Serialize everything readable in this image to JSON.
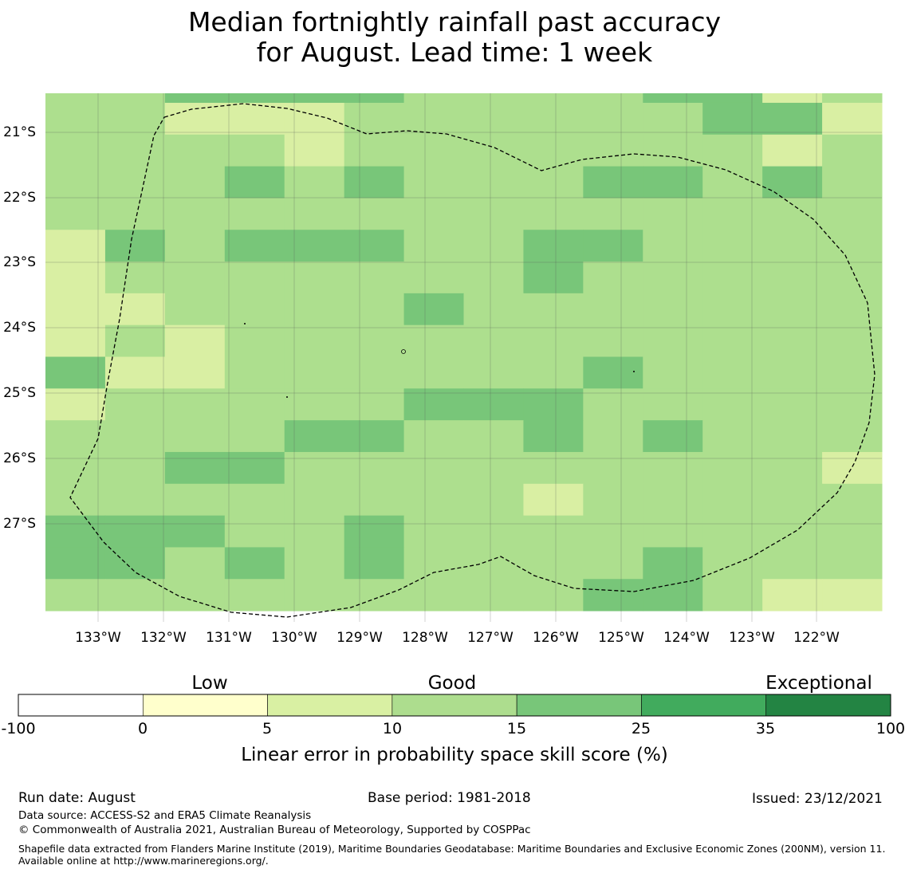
{
  "title": {
    "line1": "Median fortnightly rainfall past accuracy",
    "line2": "for August. Lead time: 1 week"
  },
  "map": {
    "lat_labels": [
      "21°S",
      "22°S",
      "23°S",
      "24°S",
      "25°S",
      "26°S",
      "27°S"
    ],
    "lon_labels": [
      "133°W",
      "132°W",
      "131°W",
      "130°W",
      "129°W",
      "128°W",
      "127°W",
      "126°W",
      "125°W",
      "124°W",
      "123°W",
      "122°W"
    ],
    "grid_classes": [
      "22333322223342",
      "22444222222334",
      "22224222222242",
      "22232322233232",
      "22222222222222",
      "43233322332222",
      "12222222322222",
      "14222232222222",
      "12422222222222",
      "34422222232222",
      "12222233322222",
      "22223322323222",
      "22332222222224",
      "22222222422222",
      "33322322222222",
      "33232322223222",
      "22222222233244"
    ],
    "cell_colors": {
      "1": "#d9efa3",
      "2": "#addf8e",
      "3": "#78c679",
      "4": "#d9efa3"
    }
  },
  "colorbar": {
    "categories": [
      "Low",
      "Good",
      "Exceptional"
    ],
    "ticks": [
      "-100",
      "0",
      "5",
      "10",
      "15",
      "25",
      "35",
      "100"
    ],
    "colors": [
      "#ffffff",
      "#ffffcc",
      "#d9f0a3",
      "#addd8e",
      "#78c679",
      "#41ab5d",
      "#238443"
    ],
    "label": "Linear error in probability space skill score (%)"
  },
  "footer": {
    "run_date": "Run date: August",
    "base_period": "Base period: 1981-2018",
    "issued": "Issued: 23/12/2021",
    "data_source": "Data source: ACCESS-S2 and ERA5 Climate Reanalysis",
    "copyright": "© Commonwealth of Australia 2021, Australian Bureau of Meteorology, Supported by COSPPac",
    "shapefile": "Shapefile data extracted from Flanders Marine Institute (2019), Maritime Boundaries Geodatabase: Maritime Boundaries and Exclusive Economic Zones (200NM), version 11. Available online at http://www.marineregions.org/."
  }
}
